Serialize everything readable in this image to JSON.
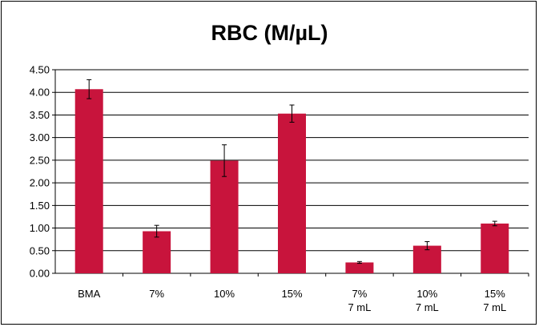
{
  "chart_data": {
    "type": "bar",
    "title": "RBC (M/µL)",
    "xlabel": "",
    "ylabel": "",
    "categories": [
      [
        "BMA"
      ],
      [
        "7%"
      ],
      [
        "10%"
      ],
      [
        "15%"
      ],
      [
        "7%",
        "7 mL"
      ],
      [
        "10%",
        "7 mL"
      ],
      [
        "15%",
        "7 mL"
      ]
    ],
    "values": [
      4.07,
      0.93,
      2.49,
      3.53,
      0.24,
      0.61,
      1.1
    ],
    "errors": [
      0.21,
      0.13,
      0.35,
      0.19,
      0.02,
      0.09,
      0.05
    ],
    "ylim": [
      0,
      4.5
    ],
    "yticks": [
      "0.00",
      "0.50",
      "1.00",
      "1.50",
      "2.00",
      "2.50",
      "3.00",
      "3.50",
      "4.00",
      "4.50"
    ],
    "grid": true,
    "legend": "none",
    "bar_color": "#c8143c"
  }
}
